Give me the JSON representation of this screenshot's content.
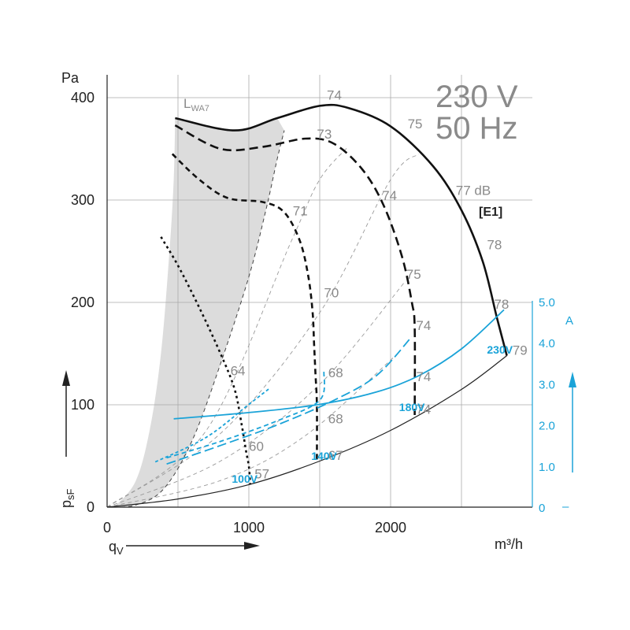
{
  "chart_data": {
    "type": "line",
    "title": "230 V",
    "subtitle": "50 Hz",
    "tag": "[E1]",
    "xlabel": "qV",
    "xunit": "m³/h",
    "ylabel": "psF",
    "yunit": "Pa",
    "xlim": [
      0,
      2900
    ],
    "ylim": [
      0,
      400
    ],
    "xticks": [
      "0",
      "1000",
      "2000"
    ],
    "yticks": [
      "0",
      "100",
      "200",
      "300",
      "400"
    ],
    "x_gridlines": [
      500,
      1000,
      1500,
      2000,
      2500
    ],
    "y_gridlines": [
      100,
      200,
      300,
      400
    ],
    "current_axis": {
      "label": "A",
      "dash_label": "–",
      "ticks": [
        "0",
        "1.0",
        "2.0",
        "3.0",
        "4.0",
        "5.0"
      ],
      "range": [
        0,
        5
      ]
    },
    "accent_colors": {
      "pressure": "#111111",
      "current": "#1aa3d8",
      "shade": "#dcdcdc",
      "grid": "#aaaaaa",
      "label_grey": "#8a8a8a"
    },
    "lwa_label": {
      "main": "L",
      "sub": "WA7"
    },
    "db_unit": "dB",
    "pressure_curves": [
      {
        "name": "230V",
        "style": "solid",
        "points": [
          [
            480,
            380
          ],
          [
            900,
            368
          ],
          [
            1200,
            380
          ],
          [
            1500,
            392
          ],
          [
            1700,
            390
          ],
          [
            2000,
            372
          ],
          [
            2300,
            333
          ],
          [
            2500,
            290
          ],
          [
            2650,
            240
          ],
          [
            2750,
            185
          ],
          [
            2820,
            148
          ]
        ]
      },
      {
        "name": "180V",
        "style": "dash",
        "points": [
          [
            480,
            373
          ],
          [
            800,
            350
          ],
          [
            1100,
            352
          ],
          [
            1400,
            360
          ],
          [
            1600,
            355
          ],
          [
            1800,
            330
          ],
          [
            1950,
            295
          ],
          [
            2080,
            245
          ],
          [
            2150,
            200
          ],
          [
            2170,
            175
          ],
          [
            2170,
            90
          ]
        ]
      },
      {
        "name": "140V",
        "style": "dash-short",
        "points": [
          [
            460,
            345
          ],
          [
            650,
            320
          ],
          [
            850,
            302
          ],
          [
            1100,
            298
          ],
          [
            1250,
            288
          ],
          [
            1360,
            260
          ],
          [
            1420,
            225
          ],
          [
            1450,
            190
          ],
          [
            1460,
            160
          ],
          [
            1470,
            130
          ],
          [
            1480,
            100
          ],
          [
            1480,
            44
          ]
        ]
      },
      {
        "name": "100V",
        "style": "dot",
        "points": [
          [
            380,
            264
          ],
          [
            500,
            236
          ],
          [
            650,
            195
          ],
          [
            800,
            150
          ],
          [
            900,
            115
          ],
          [
            950,
            80
          ],
          [
            980,
            55
          ],
          [
            1000,
            40
          ],
          [
            1010,
            22
          ]
        ]
      }
    ],
    "system_curve": {
      "style": "solid-thin",
      "points": [
        [
          0,
          0
        ],
        [
          500,
          8
        ],
        [
          1000,
          22
        ],
        [
          1500,
          45
        ],
        [
          2000,
          75
        ],
        [
          2500,
          115
        ],
        [
          2820,
          148
        ]
      ]
    },
    "stall_boundary": {
      "style": "dash-thin",
      "points": [
        [
          0,
          0
        ],
        [
          200,
          2
        ],
        [
          400,
          18
        ],
        [
          600,
          65
        ],
        [
          800,
          140
        ],
        [
          1000,
          225
        ],
        [
          1120,
          290
        ],
        [
          1200,
          340
        ],
        [
          1250,
          368
        ]
      ]
    },
    "shade_left_edge": [
      [
        50,
        0
      ],
      [
        200,
        25
      ],
      [
        300,
        75
      ],
      [
        380,
        150
      ],
      [
        440,
        250
      ],
      [
        470,
        320
      ],
      [
        480,
        380
      ]
    ],
    "resistance_lines": [
      {
        "points": [
          [
            0,
            0
          ],
          [
            800,
            26
          ],
          [
            1400,
            70
          ],
          [
            2050,
            150
          ]
        ]
      },
      {
        "points": [
          [
            0,
            0
          ],
          [
            800,
            45
          ],
          [
            1500,
            120
          ],
          [
            2100,
            220
          ]
        ]
      },
      {
        "points": [
          [
            0,
            0
          ],
          [
            800,
            72
          ],
          [
            1500,
            190
          ],
          [
            2000,
            320
          ],
          [
            2200,
            345
          ]
        ]
      },
      {
        "points": [
          [
            0,
            0
          ],
          [
            700,
            75
          ],
          [
            1300,
            260
          ],
          [
            1500,
            320
          ],
          [
            1700,
            352
          ]
        ]
      }
    ],
    "current_curves": [
      {
        "name": "230V",
        "style": "solid",
        "points": [
          [
            470,
            2.15
          ],
          [
            1000,
            2.3
          ],
          [
            1500,
            2.5
          ],
          [
            1900,
            2.8
          ],
          [
            2200,
            3.2
          ],
          [
            2500,
            3.85
          ],
          [
            2800,
            4.8
          ]
        ]
      },
      {
        "name": "180V",
        "style": "dash",
        "points": [
          [
            420,
            1.05
          ],
          [
            800,
            1.5
          ],
          [
            1200,
            2.0
          ],
          [
            1600,
            2.6
          ],
          [
            1900,
            3.2
          ],
          [
            2150,
            4.15
          ]
        ]
      },
      {
        "name": "140V",
        "style": "dash-short",
        "points": [
          [
            420,
            1.2
          ],
          [
            800,
            1.6
          ],
          [
            1200,
            2.1
          ],
          [
            1500,
            2.6
          ],
          [
            1530,
            3.3
          ]
        ]
      },
      {
        "name": "100V",
        "style": "dot",
        "points": [
          [
            340,
            1.1
          ],
          [
            700,
            1.7
          ],
          [
            1000,
            2.5
          ],
          [
            1150,
            2.9
          ]
        ]
      }
    ],
    "voltage_labels": [
      {
        "text": "230V",
        "x": 2680,
        "y": 150
      },
      {
        "text": "180V",
        "x": 2060,
        "y": 94
      },
      {
        "text": "140V",
        "x": 1440,
        "y": 46
      },
      {
        "text": "100V",
        "x": 880,
        "y": 24
      }
    ],
    "db_labels": [
      {
        "text": "74",
        "x": 1550,
        "y": 398
      },
      {
        "text": "75",
        "x": 2120,
        "y": 370
      },
      {
        "text": "73",
        "x": 1480,
        "y": 360
      },
      {
        "text": "77 dB",
        "x": 2460,
        "y": 305
      },
      {
        "text": "74",
        "x": 1940,
        "y": 300
      },
      {
        "text": "71",
        "x": 1310,
        "y": 285
      },
      {
        "text": "78",
        "x": 2680,
        "y": 252
      },
      {
        "text": "75",
        "x": 2110,
        "y": 223
      },
      {
        "text": "70",
        "x": 1530,
        "y": 205
      },
      {
        "text": "78",
        "x": 2730,
        "y": 194
      },
      {
        "text": "74",
        "x": 2180,
        "y": 173
      },
      {
        "text": "79",
        "x": 2860,
        "y": 149
      },
      {
        "text": "64",
        "x": 870,
        "y": 129
      },
      {
        "text": "68",
        "x": 1560,
        "y": 127
      },
      {
        "text": "74",
        "x": 2180,
        "y": 123
      },
      {
        "text": "74",
        "x": 2180,
        "y": 91
      },
      {
        "text": "68",
        "x": 1560,
        "y": 82
      },
      {
        "text": "60",
        "x": 1000,
        "y": 55
      },
      {
        "text": "67",
        "x": 1560,
        "y": 46
      },
      {
        "text": "57",
        "x": 1040,
        "y": 28
      }
    ]
  }
}
